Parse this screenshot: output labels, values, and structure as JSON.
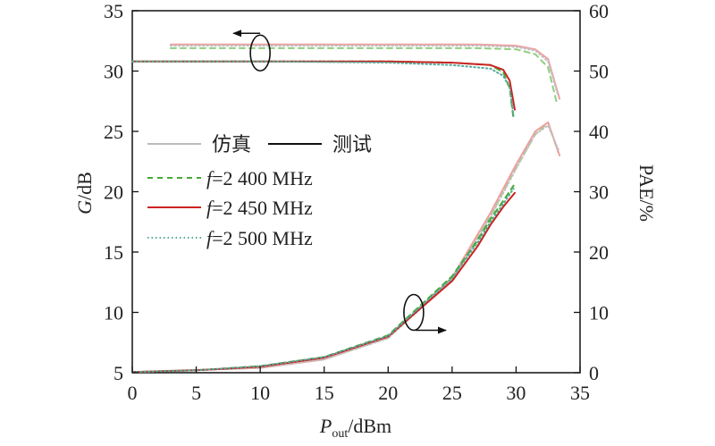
{
  "chart_data": {
    "type": "line",
    "xlabel": {
      "main": "P",
      "sub": "out",
      "unit": "/dBm"
    },
    "ylabel_left": {
      "main": "G",
      "unit": "/dB"
    },
    "ylabel_right": "PAE/%",
    "xlim": [
      0,
      35
    ],
    "ylim_left": [
      5,
      35
    ],
    "ylim_right": [
      0,
      60
    ],
    "x_ticks": [
      "0",
      "5",
      "10",
      "15",
      "20",
      "25",
      "30",
      "35"
    ],
    "y_left_ticks": [
      "5",
      "10",
      "15",
      "20",
      "25",
      "30",
      "35"
    ],
    "y_right_ticks": [
      "0",
      "10",
      "20",
      "30",
      "40",
      "50",
      "60"
    ],
    "grid": false,
    "legend_position": "middle-left",
    "legend": {
      "sim_label": "仿真",
      "meas_label": "测试",
      "sim_color": "#bbbbbb",
      "meas_color": "#111111",
      "freq_prefix": "f",
      "entries": [
        {
          "label": "=2 400 MHz",
          "color": "#44aa33",
          "dash": "6,5"
        },
        {
          "label": "=2 450 MHz",
          "color": "#cc2222",
          "dash": ""
        },
        {
          "label": "=2 500 MHz",
          "color": "#55aa99",
          "dash": "1.5,3"
        }
      ]
    },
    "series": [
      {
        "name": "=2 400 MHz",
        "group": "sim-gain",
        "axis": "left",
        "color": "#8fcf80",
        "dash": "6,5",
        "x": [
          3,
          10,
          20,
          27,
          30,
          31.5,
          32.5,
          33.2
        ],
        "y": [
          31.9,
          31.9,
          31.9,
          31.9,
          31.8,
          31.4,
          30.3,
          27.3
        ]
      },
      {
        "name": "=2 450 MHz",
        "group": "sim-gain",
        "axis": "left",
        "color": "#f0a0a0",
        "dash": "",
        "x": [
          3,
          10,
          20,
          27,
          30,
          31.5,
          32.5,
          33.4
        ],
        "y": [
          32.2,
          32.2,
          32.2,
          32.2,
          32.1,
          31.8,
          31.0,
          27.7
        ]
      },
      {
        "name": "=2 500 MHz",
        "group": "sim-gain",
        "axis": "left",
        "color": "#c0c0c0",
        "dash": "1.5,3",
        "x": [
          3,
          10,
          20,
          27,
          30,
          31.5,
          32.5,
          33.3
        ],
        "y": [
          32.1,
          32.1,
          32.1,
          32.1,
          32.0,
          31.7,
          30.8,
          27.9
        ]
      },
      {
        "name": "=2 400 MHz",
        "group": "meas-gain",
        "axis": "left",
        "color": "#44aa33",
        "dash": "6,5",
        "x": [
          0,
          10,
          20,
          25,
          28,
          29,
          29.5,
          29.8
        ],
        "y": [
          30.8,
          30.8,
          30.8,
          30.7,
          30.5,
          29.9,
          28.6,
          26.0
        ]
      },
      {
        "name": "=2 450 MHz",
        "group": "meas-gain",
        "axis": "left",
        "color": "#cc2222",
        "dash": "",
        "x": [
          0,
          10,
          20,
          25,
          28,
          29,
          29.5,
          29.9
        ],
        "y": [
          30.8,
          30.8,
          30.8,
          30.7,
          30.5,
          30.1,
          29.2,
          26.8
        ]
      },
      {
        "name": "=2 500 MHz",
        "group": "meas-gain",
        "axis": "left",
        "color": "#55aa99",
        "dash": "1.5,3",
        "x": [
          0,
          10,
          20,
          25,
          28,
          29,
          29.5,
          29.8
        ],
        "y": [
          30.8,
          30.8,
          30.7,
          30.5,
          30.2,
          29.6,
          28.6,
          26.3
        ]
      },
      {
        "name": "=2 400 MHz",
        "group": "sim-pae",
        "axis": "right",
        "color": "#8fcf80",
        "dash": "6,5",
        "x": [
          0,
          10,
          15,
          20,
          25,
          28,
          30,
          31.5,
          32.5,
          33.3
        ],
        "y": [
          0.1,
          0.8,
          2.2,
          5.8,
          15.5,
          26,
          34,
          39.5,
          41.5,
          36.5
        ]
      },
      {
        "name": "=2 450 MHz",
        "group": "sim-pae",
        "axis": "right",
        "color": "#f0a0a0",
        "dash": "",
        "x": [
          0,
          10,
          15,
          20,
          25,
          28,
          30,
          31.5,
          32.5,
          33.4
        ],
        "y": [
          0.1,
          0.8,
          2.2,
          5.9,
          15.8,
          26.5,
          34.5,
          40,
          41.5,
          36
        ]
      },
      {
        "name": "=2 500 MHz",
        "group": "sim-pae",
        "axis": "right",
        "color": "#c0c0c0",
        "dash": "1.5,3",
        "x": [
          0,
          10,
          15,
          20,
          25,
          28,
          30,
          31.5,
          32.5,
          33.3
        ],
        "y": [
          0.1,
          0.8,
          2.2,
          5.7,
          15.4,
          25.8,
          33.8,
          39.5,
          41.0,
          37
        ]
      },
      {
        "name": "=2 400 MHz",
        "group": "meas-pae",
        "axis": "right",
        "color": "#44aa33",
        "dash": "6,5",
        "x": [
          0,
          5,
          10,
          15,
          20,
          25,
          27,
          28,
          29,
          29.8
        ],
        "y": [
          0.1,
          0.4,
          1.1,
          2.6,
          6.2,
          16.0,
          22.0,
          25.5,
          28.5,
          31.0
        ]
      },
      {
        "name": "=2 450 MHz",
        "group": "meas-pae",
        "axis": "right",
        "color": "#cc2222",
        "dash": "",
        "x": [
          0,
          5,
          10,
          15,
          20,
          25,
          27,
          28,
          29,
          29.9
        ],
        "y": [
          0.1,
          0.4,
          1.0,
          2.5,
          6.0,
          15.2,
          21.0,
          24.5,
          27.5,
          29.8
        ]
      },
      {
        "name": "=2 500 MHz",
        "group": "meas-pae",
        "axis": "right",
        "color": "#55aa99",
        "dash": "1.5,3",
        "x": [
          0,
          5,
          10,
          15,
          20,
          25,
          27,
          28,
          29,
          29.8
        ],
        "y": [
          0.1,
          0.4,
          1.1,
          2.6,
          6.1,
          15.7,
          21.6,
          25.0,
          28.0,
          30.5
        ]
      }
    ],
    "annotations": [
      {
        "name": "gain-curve-marker",
        "x": 10,
        "y": 31.5,
        "axis": "left",
        "arrow": "left"
      },
      {
        "name": "pae-curve-marker",
        "x": 22,
        "y": 10,
        "axis": "right",
        "arrow": "right"
      }
    ]
  }
}
